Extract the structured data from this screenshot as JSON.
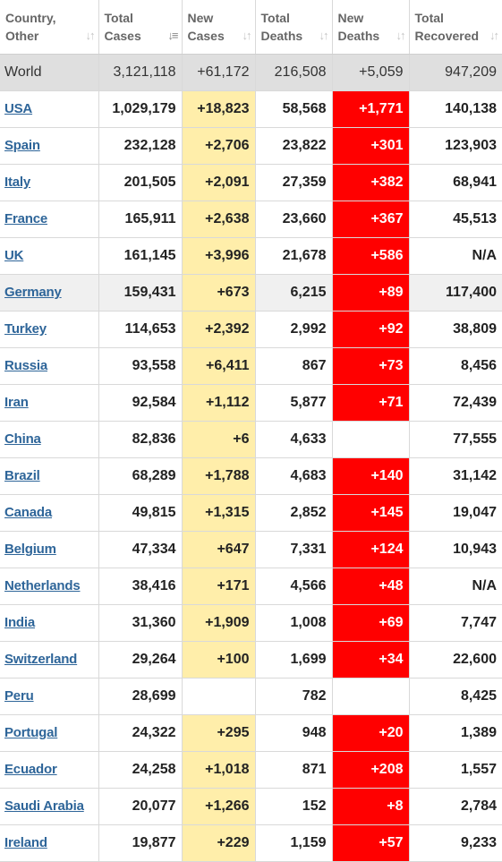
{
  "header": {
    "columns": [
      {
        "label": "Country,\nOther",
        "sort_icon": "sort-arrows-icon",
        "sorted": false
      },
      {
        "label": "Total\nCases",
        "sort_icon": "sort-desc-icon",
        "sorted": true
      },
      {
        "label": "New\nCases",
        "sort_icon": "sort-arrows-icon",
        "sorted": false
      },
      {
        "label": "Total\nDeaths",
        "sort_icon": "sort-arrows-icon",
        "sorted": false
      },
      {
        "label": "New\nDeaths",
        "sort_icon": "sort-arrows-icon",
        "sorted": false
      },
      {
        "label": "Total\nRecovered",
        "sort_icon": "sort-arrows-icon",
        "sorted": false
      }
    ]
  },
  "world": {
    "country": "World",
    "total_cases": "3,121,118",
    "new_cases": "+61,172",
    "total_deaths": "216,508",
    "new_deaths": "+5,059",
    "total_recovered": "947,209"
  },
  "rows": [
    {
      "country": "USA",
      "total_cases": "1,029,179",
      "new_cases": "+18,823",
      "total_deaths": "58,568",
      "new_deaths": "+1,771",
      "total_recovered": "140,138"
    },
    {
      "country": "Spain",
      "total_cases": "232,128",
      "new_cases": "+2,706",
      "total_deaths": "23,822",
      "new_deaths": "+301",
      "total_recovered": "123,903"
    },
    {
      "country": "Italy",
      "total_cases": "201,505",
      "new_cases": "+2,091",
      "total_deaths": "27,359",
      "new_deaths": "+382",
      "total_recovered": "68,941"
    },
    {
      "country": "France",
      "total_cases": "165,911",
      "new_cases": "+2,638",
      "total_deaths": "23,660",
      "new_deaths": "+367",
      "total_recovered": "45,513"
    },
    {
      "country": "UK",
      "total_cases": "161,145",
      "new_cases": "+3,996",
      "total_deaths": "21,678",
      "new_deaths": "+586",
      "total_recovered": "N/A"
    },
    {
      "country": "Germany",
      "total_cases": "159,431",
      "new_cases": "+673",
      "total_deaths": "6,215",
      "new_deaths": "+89",
      "total_recovered": "117,400",
      "highlight": true
    },
    {
      "country": "Turkey",
      "total_cases": "114,653",
      "new_cases": "+2,392",
      "total_deaths": "2,992",
      "new_deaths": "+92",
      "total_recovered": "38,809"
    },
    {
      "country": "Russia",
      "total_cases": "93,558",
      "new_cases": "+6,411",
      "total_deaths": "867",
      "new_deaths": "+73",
      "total_recovered": "8,456"
    },
    {
      "country": "Iran",
      "total_cases": "92,584",
      "new_cases": "+1,112",
      "total_deaths": "5,877",
      "new_deaths": "+71",
      "total_recovered": "72,439"
    },
    {
      "country": "China",
      "total_cases": "82,836",
      "new_cases": "+6",
      "total_deaths": "4,633",
      "new_deaths": "",
      "total_recovered": "77,555"
    },
    {
      "country": "Brazil",
      "total_cases": "68,289",
      "new_cases": "+1,788",
      "total_deaths": "4,683",
      "new_deaths": "+140",
      "total_recovered": "31,142"
    },
    {
      "country": "Canada",
      "total_cases": "49,815",
      "new_cases": "+1,315",
      "total_deaths": "2,852",
      "new_deaths": "+145",
      "total_recovered": "19,047"
    },
    {
      "country": "Belgium",
      "total_cases": "47,334",
      "new_cases": "+647",
      "total_deaths": "7,331",
      "new_deaths": "+124",
      "total_recovered": "10,943"
    },
    {
      "country": "Netherlands",
      "total_cases": "38,416",
      "new_cases": "+171",
      "total_deaths": "4,566",
      "new_deaths": "+48",
      "total_recovered": "N/A"
    },
    {
      "country": "India",
      "total_cases": "31,360",
      "new_cases": "+1,909",
      "total_deaths": "1,008",
      "new_deaths": "+69",
      "total_recovered": "7,747"
    },
    {
      "country": "Switzerland",
      "total_cases": "29,264",
      "new_cases": "+100",
      "total_deaths": "1,699",
      "new_deaths": "+34",
      "total_recovered": "22,600"
    },
    {
      "country": "Peru",
      "total_cases": "28,699",
      "new_cases": "",
      "total_deaths": "782",
      "new_deaths": "",
      "total_recovered": "8,425"
    },
    {
      "country": "Portugal",
      "total_cases": "24,322",
      "new_cases": "+295",
      "total_deaths": "948",
      "new_deaths": "+20",
      "total_recovered": "1,389"
    },
    {
      "country": "Ecuador",
      "total_cases": "24,258",
      "new_cases": "+1,018",
      "total_deaths": "871",
      "new_deaths": "+208",
      "total_recovered": "1,557"
    },
    {
      "country": "Saudi Arabia",
      "total_cases": "20,077",
      "new_cases": "+1,266",
      "total_deaths": "152",
      "new_deaths": "+8",
      "total_recovered": "2,784"
    },
    {
      "country": "Ireland",
      "total_cases": "19,877",
      "new_cases": "+229",
      "total_deaths": "1,159",
      "new_deaths": "+57",
      "total_recovered": "9,233"
    }
  ],
  "colors": {
    "new_cases_bg": "#ffeeaa",
    "new_deaths_bg": "#ff0000",
    "world_row_bg": "#dfdfdf",
    "link": "#2e6599"
  }
}
